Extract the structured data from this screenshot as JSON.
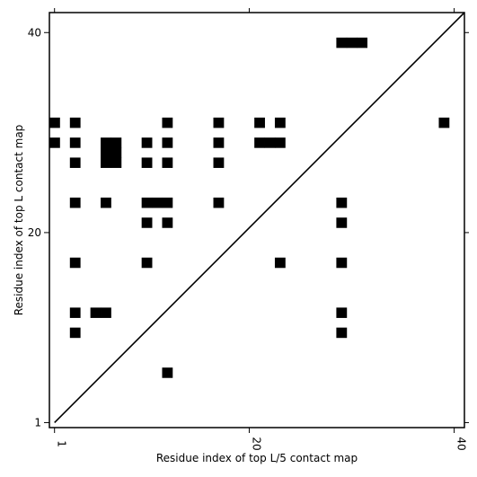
{
  "chart_data": {
    "type": "heatmap",
    "title": "",
    "xlabel": "Residue index of top L/5 contact map",
    "ylabel": "Residue index of top L contact map",
    "xlim": [
      0.5,
      41
    ],
    "ylim": [
      0.5,
      42
    ],
    "x_ticks": [
      1,
      20,
      40
    ],
    "y_ticks": [
      1,
      20,
      40
    ],
    "grid": false,
    "diagonal": true,
    "color": "#000000",
    "cells": [
      [
        1,
        31
      ],
      [
        3,
        31
      ],
      [
        12,
        31
      ],
      [
        17,
        31
      ],
      [
        21,
        31
      ],
      [
        23,
        31
      ],
      [
        39,
        31
      ],
      [
        1,
        29
      ],
      [
        3,
        29
      ],
      [
        6,
        29
      ],
      [
        7,
        29
      ],
      [
        10,
        29
      ],
      [
        12,
        29
      ],
      [
        17,
        29
      ],
      [
        21,
        29
      ],
      [
        22,
        29
      ],
      [
        23,
        29
      ],
      [
        3,
        27
      ],
      [
        6,
        27
      ],
      [
        7,
        27
      ],
      [
        10,
        27
      ],
      [
        12,
        27
      ],
      [
        17,
        27
      ],
      [
        6,
        28
      ],
      [
        7,
        28
      ],
      [
        3,
        23
      ],
      [
        6,
        23
      ],
      [
        10,
        23
      ],
      [
        11,
        23
      ],
      [
        12,
        23
      ],
      [
        17,
        23
      ],
      [
        29,
        23
      ],
      [
        10,
        21
      ],
      [
        12,
        21
      ],
      [
        29,
        21
      ],
      [
        3,
        17
      ],
      [
        10,
        17
      ],
      [
        23,
        17
      ],
      [
        29,
        17
      ],
      [
        3,
        12
      ],
      [
        5,
        12
      ],
      [
        6,
        12
      ],
      [
        29,
        12
      ],
      [
        3,
        10
      ],
      [
        29,
        10
      ],
      [
        12,
        6
      ],
      [
        29,
        39
      ],
      [
        30,
        39
      ],
      [
        31,
        39
      ]
    ]
  }
}
